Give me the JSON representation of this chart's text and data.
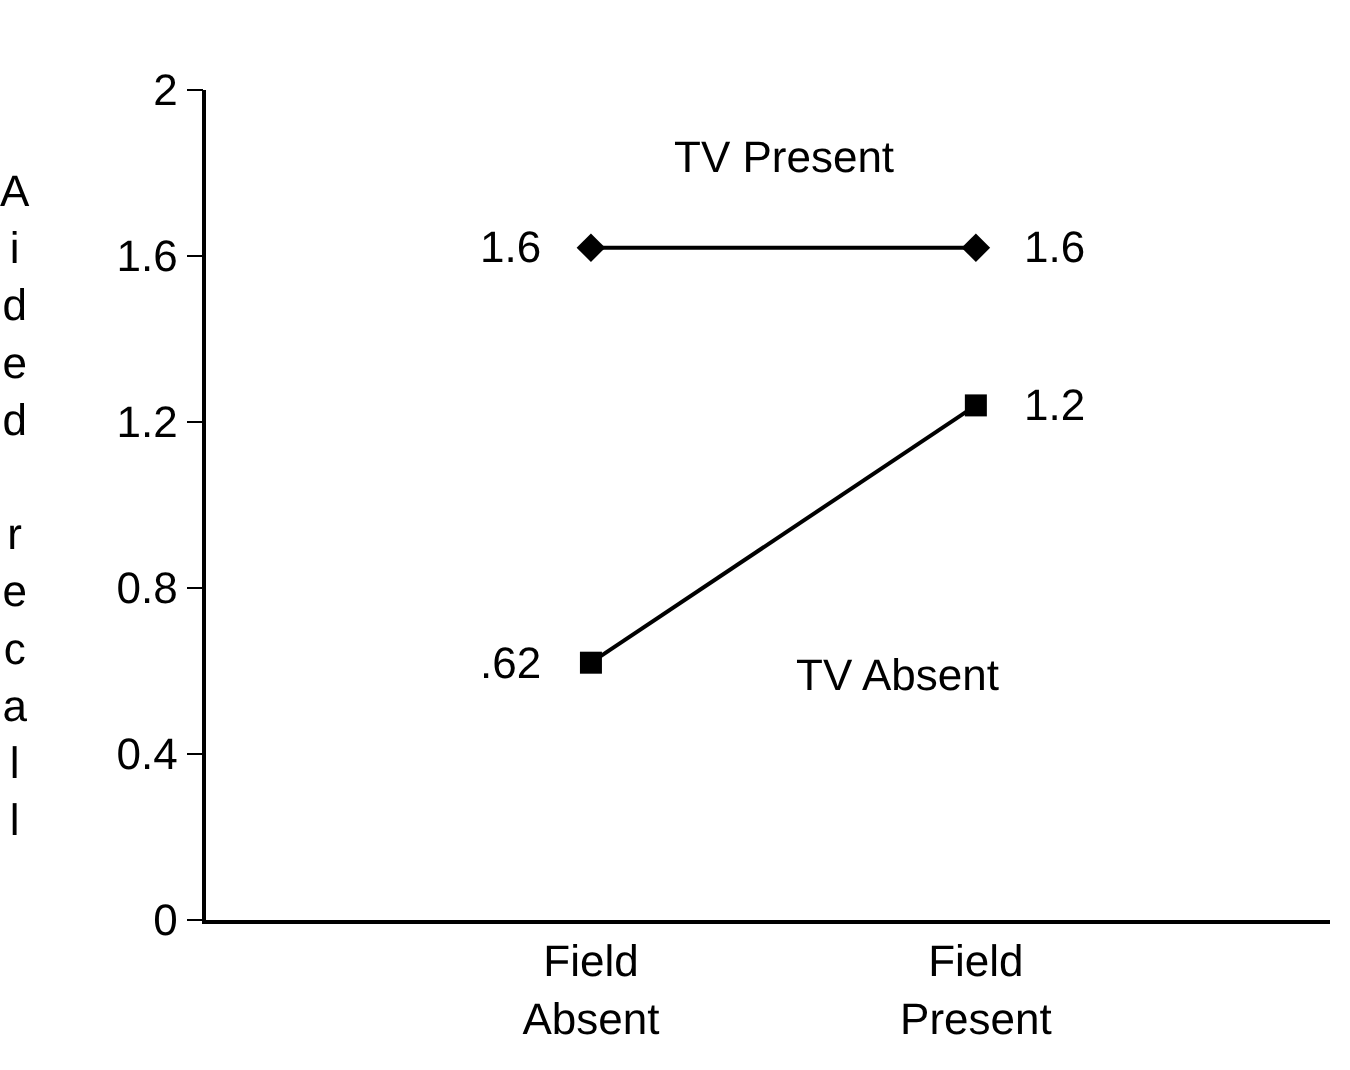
{
  "chart_data": {
    "type": "line",
    "ylabel": "Aided recall",
    "categories": [
      "Field\nAbsent",
      "Field\nPresent"
    ],
    "series": [
      {
        "name": "TV Present",
        "color": "#000000",
        "values": [
          1.62,
          1.62
        ],
        "value_labels": [
          "1.6",
          "1.6"
        ],
        "marker": "diamond"
      },
      {
        "name": "TV Absent",
        "color": "#000000",
        "values": [
          0.62,
          1.24
        ],
        "value_labels": [
          ".62",
          "1.2"
        ],
        "marker": "square"
      }
    ],
    "ylim": [
      0,
      2
    ],
    "yticks": [
      0,
      0.4,
      0.8,
      1.2,
      1.6,
      2
    ]
  }
}
